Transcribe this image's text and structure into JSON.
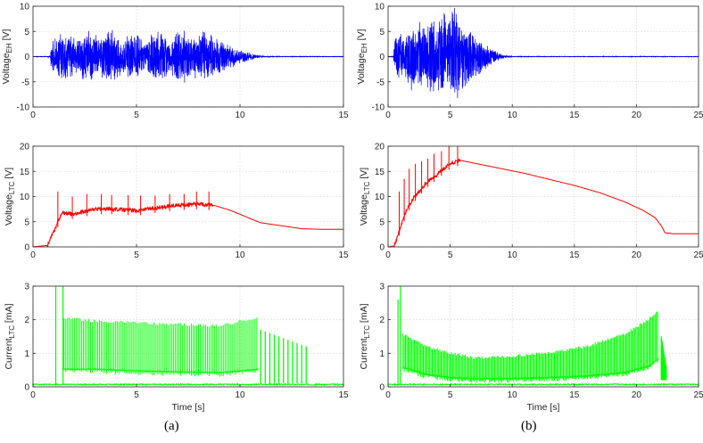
{
  "captions": {
    "left": "(a)",
    "right": "(b)"
  },
  "colors": {
    "voltage_eh": "#0000ff",
    "voltage_ltc": "#ff0000",
    "current_ltc": "#00ff00",
    "grid": "#d9d9d9",
    "axis": "#262626"
  },
  "chart_data": [
    {
      "id": "a-top",
      "type": "line",
      "ylabel_main": "Voltage",
      "ylabel_sub": "EH",
      "ylabel_unit": "[V]",
      "xlabel": "",
      "xlim": [
        0,
        15
      ],
      "ylim": [
        -10,
        10
      ],
      "xticks": [
        0,
        5,
        10,
        15
      ],
      "yticks": [
        -10,
        -5,
        0,
        5,
        10
      ],
      "grid": true,
      "series": [
        {
          "name": "Voltage EH",
          "color": "#0000ff",
          "style": "burst",
          "bursts": [
            [
              1.0,
              2.0,
              5.0
            ],
            [
              2.2,
              3.1,
              5.5
            ],
            [
              3.3,
              4.2,
              5.5
            ],
            [
              4.4,
              5.3,
              5.0
            ],
            [
              5.6,
              6.5,
              5.5
            ],
            [
              6.7,
              7.6,
              5.5
            ],
            [
              7.8,
              8.7,
              5.5
            ]
          ],
          "decay_end": 11.5
        }
      ]
    },
    {
      "id": "b-top",
      "type": "line",
      "ylabel_main": "Voltage",
      "ylabel_sub": "EH",
      "ylabel_unit": "[V]",
      "xlabel": "",
      "xlim": [
        0,
        25
      ],
      "ylim": [
        -10,
        10
      ],
      "xticks": [
        0,
        5,
        10,
        15,
        20,
        25
      ],
      "yticks": [
        -10,
        -5,
        0,
        5,
        10
      ],
      "grid": true,
      "series": [
        {
          "name": "Voltage EH",
          "color": "#0000ff",
          "style": "burst",
          "bursts": [
            [
              0.6,
              1.3,
              5.0
            ],
            [
              1.5,
              2.2,
              7.5
            ],
            [
              2.4,
              3.0,
              8.0
            ],
            [
              3.2,
              3.8,
              8.5
            ],
            [
              4.0,
              4.7,
              9.5
            ],
            [
              4.9,
              5.8,
              10.0
            ]
          ],
          "decay_end": 10.0
        }
      ]
    },
    {
      "id": "a-mid",
      "type": "line",
      "ylabel_main": "Voltage",
      "ylabel_sub": "LTC",
      "ylabel_unit": "[V]",
      "xlabel": "",
      "xlim": [
        0,
        15
      ],
      "ylim": [
        0,
        20
      ],
      "xticks": [
        0,
        5,
        10,
        15
      ],
      "yticks": [
        0,
        5,
        10,
        15,
        20
      ],
      "grid": true,
      "series": [
        {
          "name": "Voltage LTC",
          "color": "#ff0000",
          "style": "line",
          "x": [
            0,
            0.7,
            1.0,
            1.4,
            2.0,
            3.0,
            4.0,
            5.0,
            6.0,
            7.0,
            8.0,
            8.8,
            9.5,
            10.0,
            10.5,
            11.0,
            12.0,
            13.0,
            14.0,
            15.0
          ],
          "y": [
            0,
            0.3,
            3,
            6.8,
            6.5,
            7.5,
            7.5,
            7.2,
            7.8,
            8.3,
            8.5,
            8.2,
            7.3,
            6.5,
            5.6,
            4.8,
            4.2,
            3.6,
            3.5,
            3.5
          ],
          "spike_x": [
            1.2,
            1.9,
            2.6,
            3.3,
            3.8,
            4.6,
            5.2,
            5.9,
            6.6,
            7.3,
            7.9,
            8.5
          ],
          "spike_y": [
            11,
            10,
            10.5,
            10.5,
            10.3,
            10.3,
            10.2,
            10.2,
            10.5,
            10.5,
            11,
            11
          ]
        }
      ]
    },
    {
      "id": "b-mid",
      "type": "line",
      "ylabel_main": "Voltage",
      "ylabel_sub": "LTC",
      "ylabel_unit": "[V]",
      "xlabel": "",
      "xlim": [
        0,
        25
      ],
      "ylim": [
        0,
        20
      ],
      "xticks": [
        0,
        5,
        10,
        15,
        20,
        25
      ],
      "yticks": [
        0,
        5,
        10,
        15,
        20
      ],
      "grid": true,
      "series": [
        {
          "name": "Voltage LTC",
          "color": "#ff0000",
          "style": "line",
          "x": [
            0,
            0.5,
            1.0,
            1.5,
            2.0,
            3.0,
            4.0,
            5.0,
            5.8,
            7.0,
            9.0,
            11.0,
            13.0,
            15.0,
            17.0,
            19.0,
            20.5,
            21.5,
            22.0,
            22.3,
            23.0,
            24.0,
            25.0
          ],
          "y": [
            0,
            0.2,
            4,
            7.5,
            9.5,
            12.5,
            14.5,
            16.5,
            17.2,
            16.6,
            15.6,
            14.6,
            13.4,
            12.2,
            10.8,
            9.0,
            7.3,
            5.8,
            4.2,
            2.8,
            2.6,
            2.6,
            2.6
          ],
          "spike_x": [
            0.9,
            1.3,
            1.7,
            2.2,
            2.7,
            3.2,
            3.7,
            4.3,
            4.9,
            5.6
          ],
          "spike_y": [
            11,
            13.5,
            15.5,
            16.5,
            17,
            17.5,
            18.5,
            19,
            20,
            20
          ]
        }
      ]
    },
    {
      "id": "a-bot",
      "type": "line",
      "ylabel_main": "Current",
      "ylabel_sub": "LTC",
      "ylabel_unit": "[mA]",
      "xlabel": "Time [s]",
      "xlim": [
        0,
        15
      ],
      "ylim": [
        0,
        3
      ],
      "xticks": [
        0,
        5,
        10,
        15
      ],
      "yticks": [
        0,
        1,
        2,
        3
      ],
      "grid": true,
      "series": [
        {
          "name": "Current LTC",
          "color": "#00ff00",
          "style": "pulse",
          "x": [
            1.5,
            3,
            5,
            7,
            9,
            10,
            10.9
          ],
          "base": [
            0.5,
            0.5,
            0.45,
            0.42,
            0.4,
            0.45,
            0.5
          ],
          "peak": [
            2.1,
            2.0,
            1.95,
            1.9,
            1.85,
            2.0,
            2.1
          ],
          "start_spikes_x": [
            1.1,
            1.45
          ],
          "start_spikes_y": [
            3,
            3
          ],
          "tail_x": [
            11.0,
            13.2
          ],
          "tail_peak": [
            1.7,
            1.2
          ],
          "tail_base": 0.1,
          "floor": 0.07
        }
      ]
    },
    {
      "id": "b-bot",
      "type": "line",
      "ylabel_main": "Current",
      "ylabel_sub": "LTC",
      "ylabel_unit": "[mA]",
      "xlabel": "Time [s]",
      "xlim": [
        0,
        25
      ],
      "ylim": [
        0,
        3
      ],
      "xticks": [
        0,
        5,
        10,
        15,
        20,
        25
      ],
      "yticks": [
        0,
        1,
        2,
        3
      ],
      "grid": true,
      "series": [
        {
          "name": "Current LTC",
          "color": "#00ff00",
          "style": "pulse",
          "x": [
            1.2,
            3,
            5,
            7,
            10,
            13,
            16,
            19,
            21,
            21.7
          ],
          "base": [
            0.55,
            0.35,
            0.25,
            0.22,
            0.22,
            0.25,
            0.3,
            0.4,
            0.6,
            0.8
          ],
          "peak": [
            1.6,
            1.25,
            1.05,
            0.9,
            0.95,
            1.05,
            1.25,
            1.6,
            2.05,
            2.3
          ],
          "start_spikes_x": [
            1.0,
            0.8
          ],
          "start_spikes_y": [
            3,
            2.6
          ],
          "tail_x": [
            22.0,
            22.4
          ],
          "tail_peak": [
            1.5,
            0.6
          ],
          "tail_base": 0.2,
          "floor": 0.07
        }
      ]
    }
  ]
}
